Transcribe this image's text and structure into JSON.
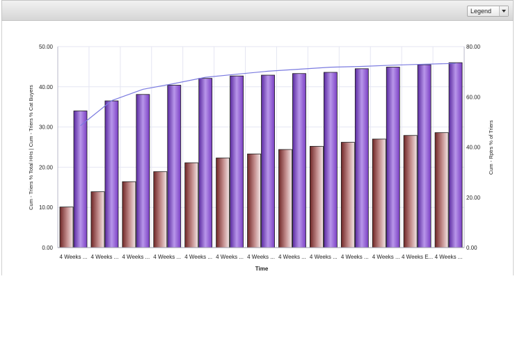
{
  "toolbar": {
    "legend_label": "Legend"
  },
  "colors": {
    "primary_bar": "#8b3a3a",
    "secondary_bar": "#7a3fc4",
    "line": "#7a7ae0",
    "grid": "#e4e6f2"
  },
  "chart_data": {
    "type": "bar",
    "xlabel": "Time",
    "ylabel": "Cum - Triers % Total HHs | Cum - Triers % Cat Buyers",
    "y2label": "Cum - Rptrs % of Triers",
    "ylim": [
      0,
      50
    ],
    "y2lim": [
      0,
      80
    ],
    "yticks": [
      "0.00",
      "10.00",
      "20.00",
      "30.00",
      "40.00",
      "50.00"
    ],
    "y2ticks": [
      "0.00",
      "20.00",
      "40.00",
      "60.00",
      "80.00"
    ],
    "grid": true,
    "categories": [
      "4 Weeks ...",
      "4 Weeks ...",
      "4 Weeks ...",
      "4 Weeks ...",
      "4 Weeks ...",
      "4 Weeks ...",
      "4 Weeks ...",
      "4 Weeks ...",
      "4 Weeks ...",
      "4 Weeks ...",
      "4 Weeks ...",
      "4 Weeks E...",
      "4 Weeks ..."
    ],
    "series": [
      {
        "name": "Cum - Triers % Total HHs",
        "type": "bar",
        "axis": "left",
        "values": [
          10.1,
          13.9,
          16.4,
          18.9,
          21.1,
          22.3,
          23.3,
          24.4,
          25.2,
          26.2,
          27.0,
          27.9,
          28.6
        ]
      },
      {
        "name": "Cum - Triers % Cat Buyers",
        "type": "bar",
        "axis": "left",
        "values": [
          34.0,
          36.5,
          38.1,
          40.4,
          42.1,
          42.7,
          42.9,
          43.3,
          43.6,
          44.5,
          44.9,
          45.5,
          46.0
        ]
      },
      {
        "name": "Cum - Rptrs % of Triers",
        "type": "line",
        "axis": "right",
        "values": [
          48.5,
          58.5,
          63.0,
          65.3,
          67.8,
          69.0,
          70.2,
          71.0,
          71.8,
          72.1,
          72.6,
          73.0,
          73.3
        ]
      }
    ]
  }
}
